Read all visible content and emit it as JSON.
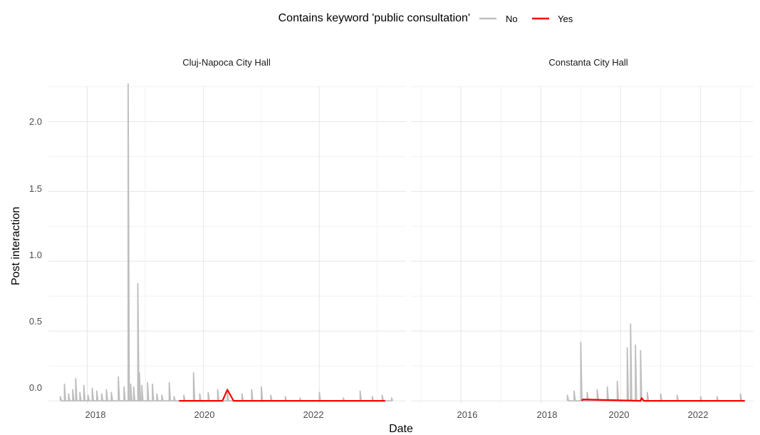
{
  "chart_data": {
    "type": "line",
    "xlabel": "Date",
    "ylabel": "Post interaction",
    "legend": {
      "title": "Contains keyword 'public consultation'",
      "position": "top",
      "items": [
        {
          "label": "No",
          "color": "#bebebe"
        },
        {
          "label": "Yes",
          "color": "#ff0000"
        }
      ]
    },
    "y_ticks": [
      "0.0",
      "0.5",
      "1.0",
      "1.5",
      "2.0"
    ],
    "ylim": [
      -0.02,
      2.35
    ],
    "grid": true,
    "panels": [
      {
        "title": "Cluj-Napoca City Hall",
        "xlim": [
          "2017-05-01",
          "2023-07-01"
        ],
        "x_ticks": [
          "2018",
          "2020",
          "2022"
        ],
        "series": [
          {
            "name": "No",
            "color": "#bebebe",
            "points": [
              [
                "2017-07-15",
                0.03
              ],
              [
                "2017-08-10",
                0.12
              ],
              [
                "2017-09-05",
                0.05
              ],
              [
                "2017-10-01",
                0.08
              ],
              [
                "2017-10-20",
                0.16
              ],
              [
                "2017-11-15",
                0.06
              ],
              [
                "2017-12-10",
                0.11
              ],
              [
                "2018-01-05",
                0.04
              ],
              [
                "2018-02-01",
                0.09
              ],
              [
                "2018-03-01",
                0.07
              ],
              [
                "2018-04-01",
                0.05
              ],
              [
                "2018-05-01",
                0.08
              ],
              [
                "2018-06-01",
                0.06
              ],
              [
                "2018-07-15",
                0.17
              ],
              [
                "2018-08-20",
                0.1
              ],
              [
                "2018-09-15",
                2.27
              ],
              [
                "2018-10-01",
                0.12
              ],
              [
                "2018-10-20",
                0.1
              ],
              [
                "2018-11-15",
                0.84
              ],
              [
                "2018-11-25",
                0.2
              ],
              [
                "2018-12-10",
                0.11
              ],
              [
                "2019-01-15",
                0.13
              ],
              [
                "2019-02-15",
                0.12
              ],
              [
                "2019-03-15",
                0.05
              ],
              [
                "2019-04-15",
                0.04
              ],
              [
                "2019-06-01",
                0.13
              ],
              [
                "2019-07-01",
                0.03
              ],
              [
                "2019-09-01",
                0.04
              ],
              [
                "2019-11-01",
                0.2
              ],
              [
                "2019-12-10",
                0.05
              ],
              [
                "2020-02-01",
                0.06
              ],
              [
                "2020-04-01",
                0.08
              ],
              [
                "2020-06-01",
                0.07
              ],
              [
                "2020-09-01",
                0.05
              ],
              [
                "2020-11-01",
                0.08
              ],
              [
                "2021-01-01",
                0.1
              ],
              [
                "2021-03-01",
                0.04
              ],
              [
                "2021-06-01",
                0.03
              ],
              [
                "2021-09-01",
                0.02
              ],
              [
                "2022-01-01",
                0.06
              ],
              [
                "2022-06-01",
                0.02
              ],
              [
                "2022-09-15",
                0.07
              ],
              [
                "2022-12-01",
                0.03
              ],
              [
                "2023-02-01",
                0.04
              ],
              [
                "2023-04-01",
                0.02
              ]
            ]
          },
          {
            "name": "Yes",
            "color": "#ff0000",
            "points": [
              [
                "2019-08-01",
                0.0
              ],
              [
                "2020-05-01",
                0.0
              ],
              [
                "2020-06-01",
                0.08
              ],
              [
                "2020-07-10",
                0.0
              ],
              [
                "2023-02-20",
                0.0
              ]
            ]
          }
        ]
      },
      {
        "title": "Constanta City Hall",
        "xlim": [
          "2014-10-01",
          "2023-05-01"
        ],
        "x_ticks": [
          "2016",
          "2018",
          "2020",
          "2022"
        ],
        "series": [
          {
            "name": "No",
            "color": "#bebebe",
            "points": [
              [
                "2018-09-01",
                0.04
              ],
              [
                "2018-11-01",
                0.07
              ],
              [
                "2019-01-01",
                0.42
              ],
              [
                "2019-03-01",
                0.06
              ],
              [
                "2019-06-01",
                0.08
              ],
              [
                "2019-09-01",
                0.1
              ],
              [
                "2019-12-01",
                0.14
              ],
              [
                "2020-03-01",
                0.38
              ],
              [
                "2020-04-01",
                0.55
              ],
              [
                "2020-05-15",
                0.4
              ],
              [
                "2020-07-01",
                0.36
              ],
              [
                "2020-09-01",
                0.06
              ],
              [
                "2021-01-01",
                0.05
              ],
              [
                "2021-06-01",
                0.04
              ],
              [
                "2022-01-01",
                0.03
              ],
              [
                "2022-06-01",
                0.03
              ],
              [
                "2023-01-01",
                0.05
              ]
            ]
          },
          {
            "name": "Yes",
            "color": "#ff0000",
            "points": [
              [
                "2019-01-10",
                0.0
              ],
              [
                "2019-01-20",
                0.01
              ],
              [
                "2020-07-01",
                0.0
              ],
              [
                "2020-07-10",
                0.02
              ],
              [
                "2020-08-01",
                0.0
              ],
              [
                "2023-02-10",
                0.0
              ]
            ]
          }
        ]
      }
    ]
  }
}
